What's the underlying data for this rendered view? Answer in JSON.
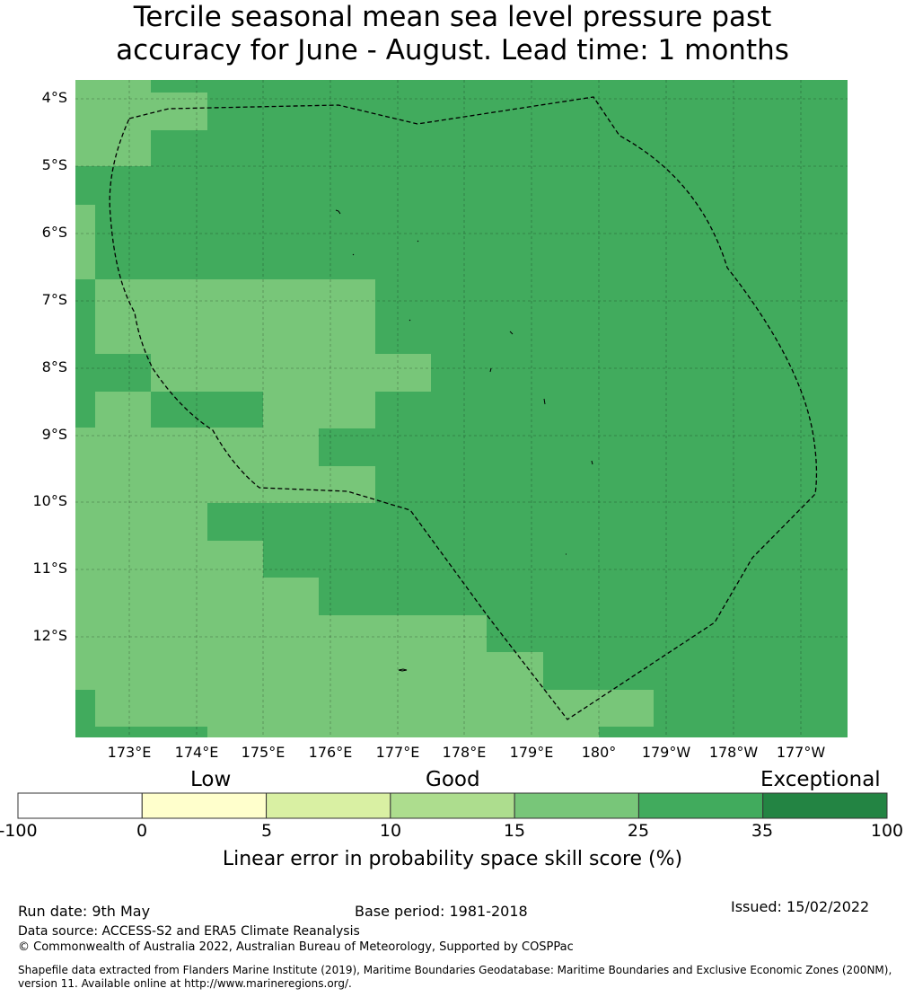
{
  "title": {
    "line1": "Tercile seasonal mean sea level pressure past",
    "line2": "accuracy for June - August. Lead time: 1 months"
  },
  "map": {
    "lat_labels": [
      "4°S",
      "5°S",
      "6°S",
      "7°S",
      "8°S",
      "9°S",
      "10°S",
      "11°S",
      "12°S"
    ],
    "lon_labels": [
      "173°E",
      "174°E",
      "175°E",
      "176°E",
      "177°E",
      "178°E",
      "179°E",
      "180°",
      "179°W",
      "178°W",
      "177°W"
    ],
    "gridlines": true,
    "boundary_style": "dashed"
  },
  "colorbar": {
    "category_labels": {
      "low": "Low",
      "good": "Good",
      "exceptional": "Exceptional"
    },
    "ticks": [
      "-100",
      "0",
      "5",
      "10",
      "15",
      "25",
      "35",
      "100"
    ],
    "colors": [
      "#ffffff",
      "#ffffcc",
      "#d9f0a3",
      "#addd8e",
      "#78c679",
      "#41ab5d",
      "#238443"
    ],
    "label": "Linear error in probability space skill score (%)"
  },
  "footer": {
    "run_date": "Run date: 9th May",
    "base_period": "Base period: 1981-2018",
    "issued": "Issued: 15/02/2022",
    "data_source": "Data source: ACCESS-S2 and ERA5 Climate Reanalysis",
    "copyright": "© Commonwealth of Australia 2022, Australian Bureau of Meteorology, Supported by COSPPac",
    "shapefile_line1": "Shapefile data extracted from Flanders Marine Institute (2019), Maritime Boundaries Geodatabase: Maritime Boundaries and Exclusive Economic Zones (200NM),",
    "shapefile_line2": "version 11. Available online at http://www.marineregions.org/."
  }
}
